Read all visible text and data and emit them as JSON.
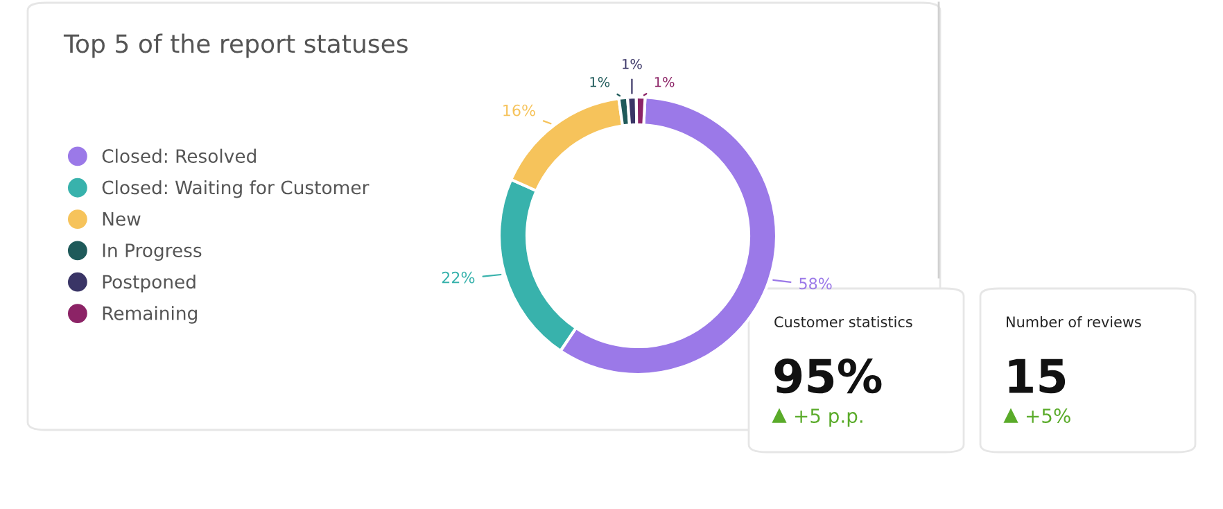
{
  "chart_data": [
    {
      "type": "donut",
      "title": "Top 5 of the report statuses",
      "categories": [
        "Closed: Resolved",
        "Closed: Waiting for Customer",
        "New",
        "In Progress",
        "Postponed",
        "Remaining"
      ],
      "values": [
        58,
        22,
        16,
        1,
        1,
        1
      ],
      "colors": [
        "#9b79e8",
        "#38b2ac",
        "#f6c35b",
        "#1f5a5a",
        "#3a3566",
        "#8c2366"
      ],
      "value_labels": [
        "58%",
        "22%",
        "16%",
        "1%",
        "1%",
        "1%"
      ],
      "legend": "left"
    },
    {
      "type": "other",
      "title": "Customer statistics",
      "annotations": [
        "95%",
        "+5 p.p."
      ]
    },
    {
      "type": "other",
      "title": "Number of reviews",
      "annotations": [
        "15",
        "+5%"
      ]
    }
  ]
}
